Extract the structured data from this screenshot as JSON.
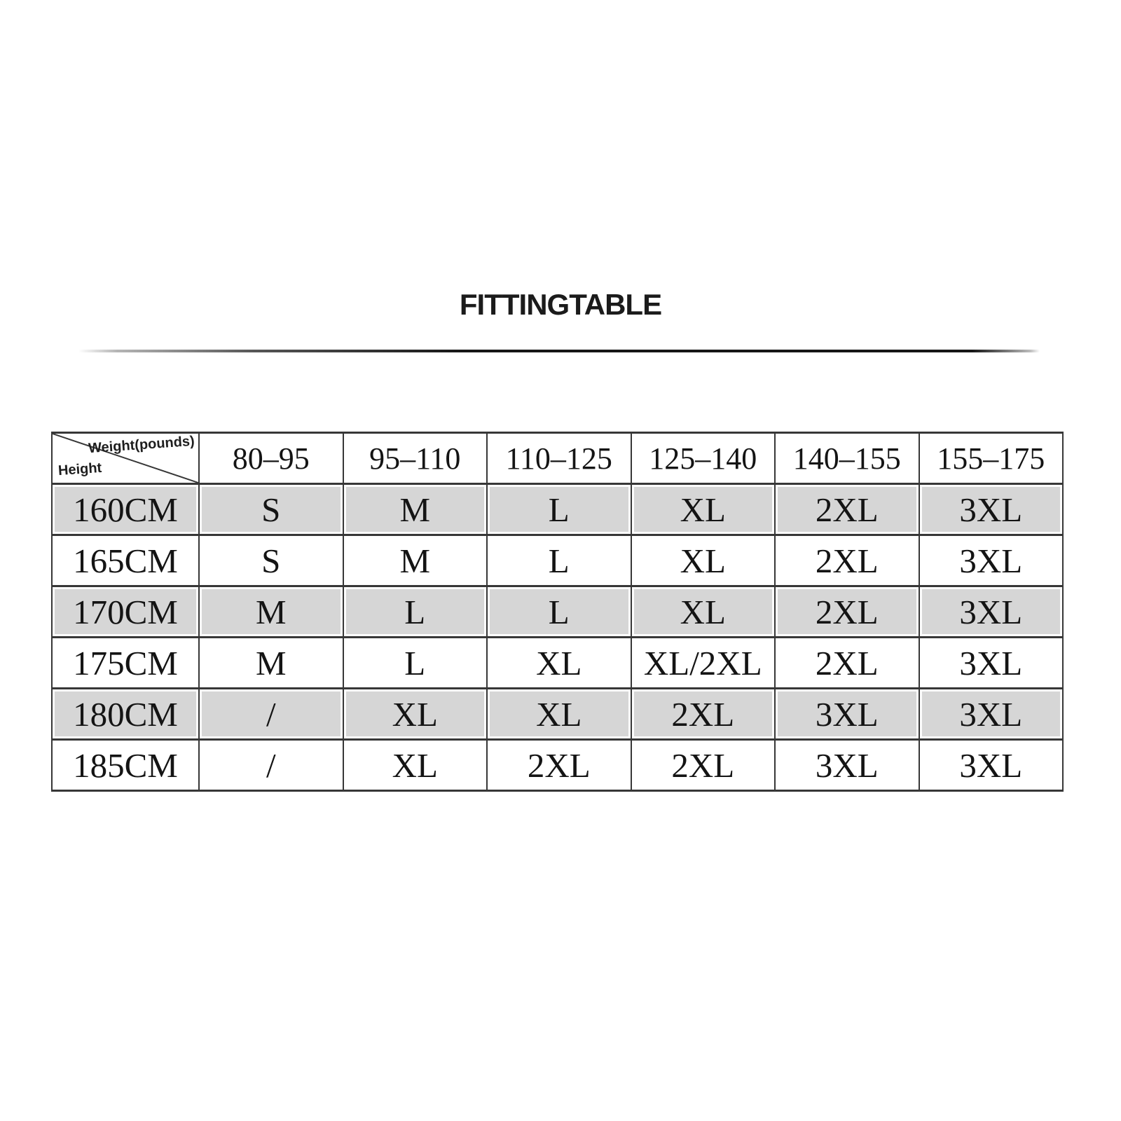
{
  "page": {
    "title": "FITTINGTABLE"
  },
  "chart_data": {
    "type": "table",
    "title": "FITTINGTABLE",
    "corner": {
      "top_right_label": "Weight(pounds)",
      "bottom_left_label": "Height"
    },
    "columns": [
      "80–95",
      "95–110",
      "110–125",
      "125–140",
      "140–155",
      "155–175"
    ],
    "rows": [
      {
        "height": "160CM",
        "sizes": [
          "S",
          "M",
          "L",
          "XL",
          "2XL",
          "3XL"
        ],
        "shaded": true
      },
      {
        "height": "165CM",
        "sizes": [
          "S",
          "M",
          "L",
          "XL",
          "2XL",
          "3XL"
        ],
        "shaded": false
      },
      {
        "height": "170CM",
        "sizes": [
          "M",
          "L",
          "L",
          "XL",
          "2XL",
          "3XL"
        ],
        "shaded": true
      },
      {
        "height": "175CM",
        "sizes": [
          "M",
          "L",
          "XL",
          "XL/2XL",
          "2XL",
          "3XL"
        ],
        "shaded": false
      },
      {
        "height": "180CM",
        "sizes": [
          "/",
          "XL",
          "XL",
          "2XL",
          "3XL",
          "3XL"
        ],
        "shaded": true
      },
      {
        "height": "185CM",
        "sizes": [
          "/",
          "XL",
          "2XL",
          "2XL",
          "3XL",
          "3XL"
        ],
        "shaded": false
      }
    ],
    "colors": {
      "shaded_row": "#d6d6d6",
      "border": "#373737",
      "text": "#141414"
    }
  }
}
